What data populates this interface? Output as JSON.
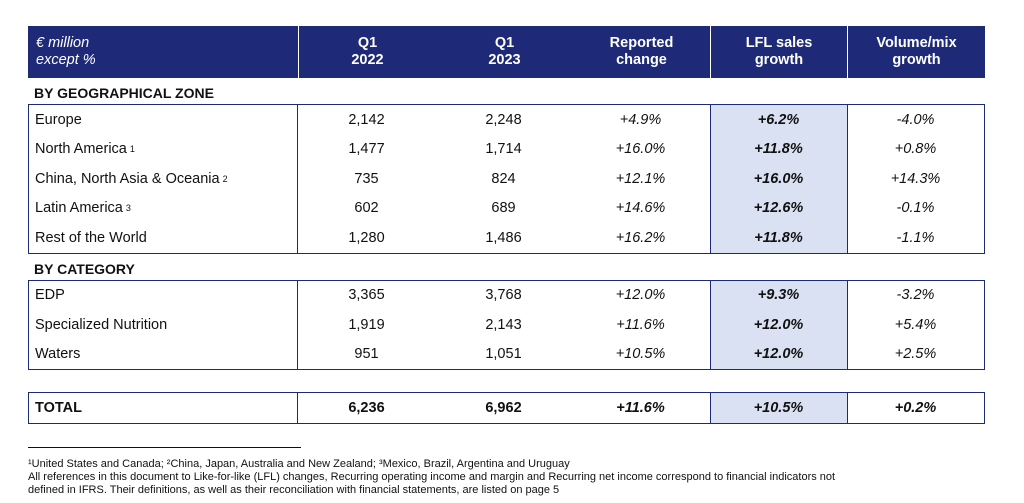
{
  "header": {
    "col0_line1": "€ million",
    "col0_line2": "except %",
    "col1_line1": "Q1",
    "col1_line2": "2022",
    "col2_line1": "Q1",
    "col2_line2": "2023",
    "col3_line1": "Reported",
    "col3_line2": "change",
    "col4_line1": "LFL sales",
    "col4_line2": "growth",
    "col5_line1": "Volume/mix",
    "col5_line2": "growth"
  },
  "sections": {
    "geo_title": "BY GEOGRAPHICAL ZONE",
    "cat_title": "BY CATEGORY"
  },
  "geo_rows": [
    {
      "label": "Europe",
      "sup": "",
      "q1_2022": "2,142",
      "q1_2023": "2,248",
      "reported": "+4.9%",
      "lfl": "+6.2%",
      "volmix": "-4.0%"
    },
    {
      "label": "North America",
      "sup": "1",
      "q1_2022": "1,477",
      "q1_2023": "1,714",
      "reported": "+16.0%",
      "lfl": "+11.8%",
      "volmix": "+0.8%"
    },
    {
      "label": "China, North Asia & Oceania",
      "sup": "2",
      "q1_2022": "735",
      "q1_2023": "824",
      "reported": "+12.1%",
      "lfl": "+16.0%",
      "volmix": "+14.3%"
    },
    {
      "label": "Latin America",
      "sup": "3",
      "q1_2022": "602",
      "q1_2023": "689",
      "reported": "+14.6%",
      "lfl": "+12.6%",
      "volmix": "-0.1%"
    },
    {
      "label": "Rest of the World",
      "sup": "",
      "q1_2022": "1,280",
      "q1_2023": "1,486",
      "reported": "+16.2%",
      "lfl": "+11.8%",
      "volmix": "-1.1%"
    }
  ],
  "cat_rows": [
    {
      "label": "EDP",
      "q1_2022": "3,365",
      "q1_2023": "3,768",
      "reported": "+12.0%",
      "lfl": "+9.3%",
      "volmix": "-3.2%"
    },
    {
      "label": "Specialized Nutrition",
      "q1_2022": "1,919",
      "q1_2023": "2,143",
      "reported": "+11.6%",
      "lfl": "+12.0%",
      "volmix": "+5.4%"
    },
    {
      "label": "Waters",
      "q1_2022": "951",
      "q1_2023": "1,051",
      "reported": "+10.5%",
      "lfl": "+12.0%",
      "volmix": "+2.5%"
    }
  ],
  "total": {
    "label": "TOTAL",
    "q1_2022": "6,236",
    "q1_2023": "6,962",
    "reported": "+11.6%",
    "lfl": "+10.5%",
    "volmix": "+0.2%"
  },
  "footnotes": {
    "line1": "¹United States and Canada; ²China, Japan, Australia and New Zealand; ³Mexico, Brazil, Argentina and Uruguay",
    "line2": "All references in this document to Like-for-like (LFL) changes, Recurring operating income and margin and Recurring net income correspond to financial indicators not",
    "line3": "defined in IFRS. Their definitions, as well as their reconciliation with financial statements, are listed on page 5"
  },
  "colors": {
    "header_bg": "#1e2a78",
    "lfl_highlight": "#d9e1f2"
  }
}
